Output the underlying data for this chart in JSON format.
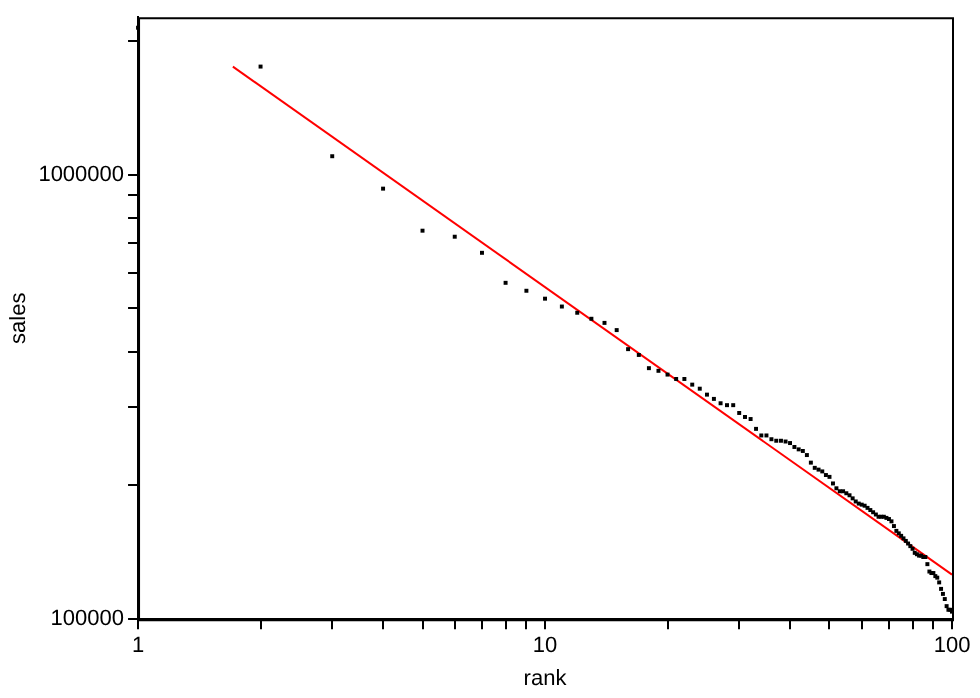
{
  "chart_data": {
    "type": "scatter",
    "xlabel": "rank",
    "ylabel": "sales",
    "log": "xy",
    "grid": false,
    "legend": false,
    "marker": "square",
    "xlim": [
      1,
      100
    ],
    "ylim": [
      100000,
      2260000
    ],
    "xticks": [
      1,
      {
        "value": 2,
        "label": null
      },
      {
        "value": 3,
        "label": null
      },
      {
        "value": 4,
        "label": null
      },
      {
        "value": 5,
        "label": null
      },
      {
        "value": 6,
        "label": null
      },
      {
        "value": 7,
        "label": null
      },
      {
        "value": 8,
        "label": null
      },
      {
        "value": 9,
        "label": null
      },
      10,
      {
        "value": 20,
        "label": null
      },
      {
        "value": 30,
        "label": null
      },
      {
        "value": 40,
        "label": null
      },
      {
        "value": 50,
        "label": null
      },
      {
        "value": 60,
        "label": null
      },
      {
        "value": 70,
        "label": null
      },
      {
        "value": 80,
        "label": null
      },
      {
        "value": 90,
        "label": null
      },
      100
    ],
    "yticks": [
      100000,
      {
        "value": 200000,
        "label": null
      },
      {
        "value": 300000,
        "label": null
      },
      {
        "value": 400000,
        "label": null
      },
      {
        "value": 500000,
        "label": null
      },
      {
        "value": 600000,
        "label": null
      },
      {
        "value": 700000,
        "label": null
      },
      {
        "value": 800000,
        "label": null
      },
      {
        "value": 900000,
        "label": null
      },
      1000000,
      {
        "value": 2000000,
        "label": null
      }
    ],
    "series": [
      {
        "color": "#000000",
        "x": [
          1,
          2,
          3,
          4,
          5,
          6,
          7,
          8,
          9,
          10,
          11,
          12,
          13,
          14,
          15,
          16,
          17,
          18,
          19,
          20,
          21,
          22,
          23,
          24,
          25,
          26,
          27,
          28,
          29,
          30,
          31,
          32,
          33,
          34,
          35,
          36,
          37,
          38,
          39,
          40,
          41,
          42,
          43,
          44,
          45,
          46,
          47,
          48,
          49,
          50,
          51,
          52,
          53,
          54,
          55,
          56,
          57,
          58,
          59,
          60,
          61,
          62,
          63,
          64,
          65,
          66,
          67,
          68,
          69,
          70,
          71,
          72,
          73,
          74,
          75,
          76,
          77,
          78,
          79,
          80,
          81,
          82,
          83,
          84,
          85,
          86,
          87,
          88,
          89,
          90,
          91,
          92,
          93,
          94,
          95,
          96,
          97,
          98,
          99,
          100
        ],
        "values": [
          2140000,
          1750000,
          1100000,
          930000,
          748000,
          725000,
          667000,
          571000,
          548000,
          526000,
          505000,
          489000,
          474000,
          464000,
          447000,
          405000,
          393000,
          367000,
          362000,
          355000,
          347000,
          347000,
          337000,
          330000,
          320000,
          313000,
          306000,
          303000,
          303000,
          291000,
          285000,
          282000,
          268000,
          259000,
          259000,
          254000,
          252000,
          252000,
          251000,
          249000,
          244000,
          241000,
          239000,
          234000,
          225000,
          219000,
          217000,
          215000,
          211000,
          209000,
          202000,
          197000,
          194000,
          194000,
          192000,
          190000,
          187000,
          184000,
          182000,
          181000,
          180000,
          178000,
          176000,
          174000,
          172000,
          170000,
          170000,
          170000,
          169000,
          168000,
          166000,
          162000,
          158000,
          156000,
          154000,
          152000,
          150000,
          148000,
          146000,
          144000,
          141000,
          140000,
          139000,
          139000,
          138000,
          138000,
          133000,
          128000,
          127000,
          127000,
          125000,
          124000,
          121000,
          117000,
          114000,
          111000,
          107000,
          105000,
          105000,
          104000
        ]
      },
      {
        "type": "line",
        "color": "#ff0000",
        "line_style": "solid",
        "marker": "none",
        "x": [
          1.71,
          100
        ],
        "values": [
          1750000,
          126000
        ]
      }
    ]
  }
}
